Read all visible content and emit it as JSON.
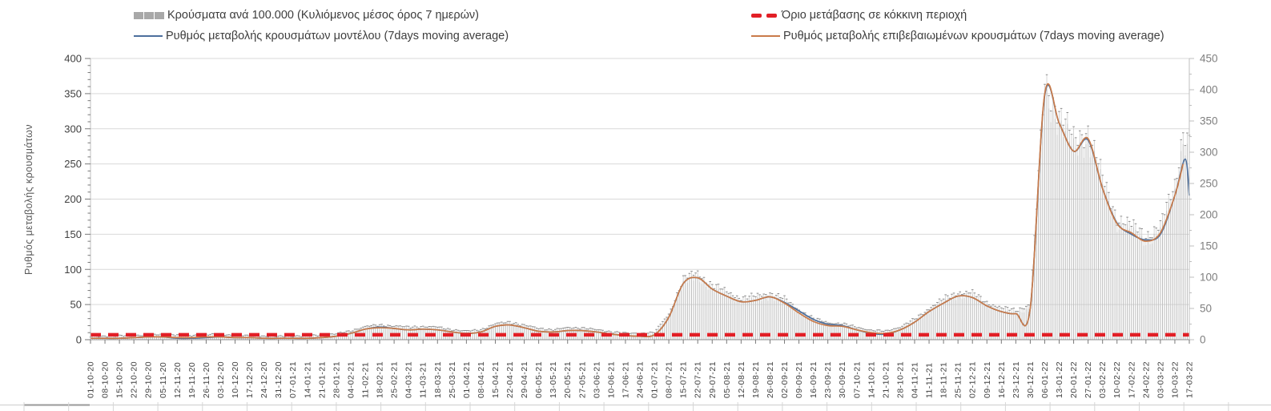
{
  "legend": {
    "items": [
      {
        "id": "cases-bars",
        "label": "Κρούσματα ανά 100.000 (Κυλιόμενος μέσος όρος 7 ημερών)",
        "swatch": "bar",
        "color": "#a8a8a8"
      },
      {
        "id": "red-threshold",
        "label": "Όριο μετάβασης σε κόκκινη περιοχή",
        "swatch": "dash",
        "color": "#e21f26"
      },
      {
        "id": "model-line",
        "label": "Ρυθμός μεταβολής κρουσμάτων μοντέλου (7days moving average)",
        "swatch": "line",
        "color": "#4d6f9d"
      },
      {
        "id": "confirmed-line",
        "label": "Ρυθμός μεταβολής επιβεβαιωμένων κρουσμάτων (7days moving average)",
        "swatch": "line",
        "color": "#c97b4a"
      }
    ]
  },
  "chart_data": {
    "type": "composite",
    "subtype": "bars-right-axis + two-lines-left-axis + dashed-threshold",
    "grid": "horizontal",
    "legend_position": "top",
    "x_label_interval_days": 7,
    "x_labels": [
      "01-10-20",
      "08-10-20",
      "15-10-20",
      "22-10-20",
      "29-10-20",
      "05-11-20",
      "12-11-20",
      "19-11-20",
      "26-11-20",
      "03-12-20",
      "10-12-20",
      "17-12-20",
      "24-12-20",
      "31-12-20",
      "07-01-21",
      "14-01-21",
      "21-01-21",
      "28-01-21",
      "04-02-21",
      "11-02-21",
      "18-02-21",
      "25-02-21",
      "04-03-21",
      "11-03-21",
      "18-03-21",
      "25-03-21",
      "01-04-21",
      "08-04-21",
      "15-04-21",
      "22-04-21",
      "29-04-21",
      "06-05-21",
      "13-05-21",
      "20-05-21",
      "27-05-21",
      "03-06-21",
      "10-06-21",
      "17-06-21",
      "24-06-21",
      "01-07-21",
      "08-07-21",
      "15-07-21",
      "22-07-21",
      "29-07-21",
      "05-08-21",
      "12-08-21",
      "19-08-21",
      "26-08-21",
      "02-09-21",
      "09-09-21",
      "16-09-21",
      "23-09-21",
      "30-09-21",
      "07-10-21",
      "14-10-21",
      "21-10-21",
      "28-10-21",
      "04-11-21",
      "11-11-21",
      "18-11-21",
      "25-11-21",
      "02-12-21",
      "09-12-21",
      "16-12-21",
      "23-12-21",
      "30-12-21",
      "06-01-22",
      "13-01-22",
      "20-01-22",
      "27-01-22",
      "03-02-22",
      "10-02-22",
      "17-02-22",
      "24-02-22",
      "03-03-22",
      "10-03-22",
      "17-03-22"
    ],
    "left_axis": {
      "title": "Ρυθμός μεταβολής κρουσμάτων",
      "min": 0,
      "max": 400,
      "major_tick": 50,
      "minor_tick": 10
    },
    "right_axis": {
      "min": 0,
      "max": 450,
      "major_tick": 50,
      "minor_tick": 25
    },
    "threshold": {
      "label": "Όριο μετάβασης σε κόκκινη περιοχή",
      "value": 7,
      "color": "#e21f26",
      "style": "dashed"
    },
    "series": [
      {
        "name": "Κρούσματα ανά 100.000 (Κυλιόμενος μέσος όρος 7 ημερών)",
        "type": "bar",
        "axis": "right",
        "color": "#bdbdbd",
        "weekly_values": [
          2,
          2,
          3,
          3,
          4,
          5,
          4,
          3,
          5,
          5,
          3,
          3,
          2,
          2,
          2,
          3,
          4,
          6,
          10,
          17,
          19,
          18,
          16,
          17,
          16,
          12,
          10,
          12,
          21,
          24,
          19,
          14,
          12,
          15,
          15,
          12,
          9,
          7,
          6,
          8,
          36,
          90,
          99,
          81,
          70,
          61,
          63,
          69,
          59,
          43,
          29,
          23,
          21,
          16,
          11,
          10,
          16,
          28,
          45,
          59,
          70,
          68,
          54,
          45,
          42,
          51,
          394,
          347,
          302,
          322,
          242,
          186,
          171,
          158,
          171,
          235,
          300
        ],
        "extra_points": [
          [
            529,
            322
          ]
        ]
      },
      {
        "name": "Ρυθμός μεταβολής κρουσμάτων μοντέλου (7days moving average)",
        "type": "line",
        "axis": "left",
        "color": "#4d6f9d",
        "weekly_values": [
          2,
          2,
          2,
          3,
          4,
          4,
          2,
          2,
          3,
          4,
          3,
          3,
          2,
          2,
          2,
          2,
          3,
          5,
          9,
          15,
          18,
          16,
          14,
          15,
          14,
          11,
          9,
          11,
          19,
          21,
          17,
          12,
          11,
          13,
          13,
          11,
          8,
          6,
          5,
          7,
          32,
          80,
          88,
          72,
          62,
          54,
          56,
          61,
          53,
          41,
          29,
          22,
          20,
          14,
          9,
          8,
          14,
          25,
          40,
          52,
          62,
          60,
          48,
          40,
          37,
          45,
          348,
          308,
          268,
          284,
          215,
          166,
          150,
          142,
          150,
          205,
          205
        ],
        "extra_points": [
          [
            530,
            257
          ]
        ]
      },
      {
        "name": "Ρυθμός μεταβολής επιβεβαιωμένων κρουσμάτων (7days moving average)",
        "type": "line",
        "axis": "left",
        "color": "#c97b4a",
        "weekly_values": [
          2,
          2,
          2,
          3,
          4,
          4,
          3,
          3,
          4,
          4,
          3,
          3,
          2,
          2,
          2,
          2,
          3,
          5,
          9,
          15,
          17,
          16,
          14,
          15,
          14,
          11,
          9,
          11,
          19,
          21,
          17,
          12,
          11,
          13,
          13,
          11,
          8,
          6,
          5,
          7,
          32,
          80,
          88,
          72,
          62,
          54,
          56,
          61,
          52,
          38,
          26,
          20,
          19,
          14,
          10,
          9,
          14,
          25,
          40,
          52,
          62,
          60,
          48,
          40,
          37,
          45,
          350,
          308,
          268,
          286,
          215,
          165,
          152,
          140,
          152,
          205,
          null
        ],
        "extra_points": [
          [
            529,
            250
          ]
        ]
      }
    ]
  }
}
